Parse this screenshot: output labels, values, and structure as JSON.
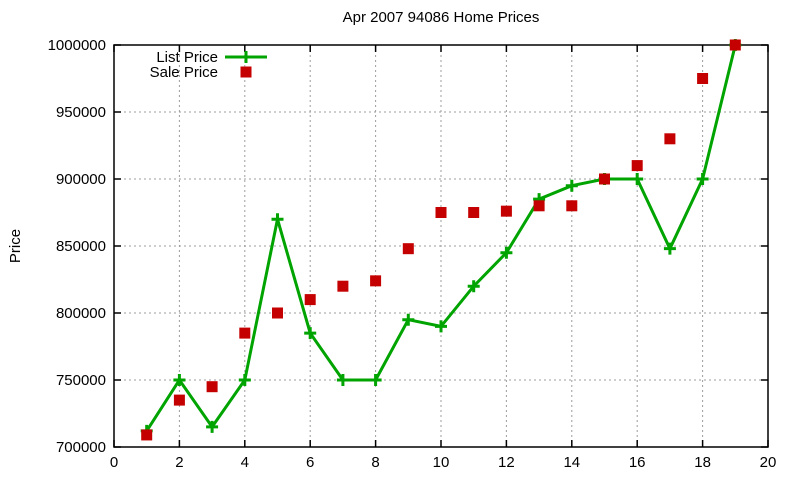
{
  "chart_data": {
    "type": "line",
    "title": "Apr 2007 94086 Home Prices",
    "xlabel": "",
    "ylabel": "Price",
    "xlim": [
      0,
      20
    ],
    "ylim": [
      700000,
      1000000
    ],
    "x_ticks": [
      0,
      2,
      4,
      6,
      8,
      10,
      12,
      14,
      16,
      18,
      20
    ],
    "y_ticks": [
      700000,
      750000,
      800000,
      850000,
      900000,
      950000,
      1000000
    ],
    "grid": true,
    "legend_position": "top-left",
    "x": [
      1,
      2,
      3,
      4,
      5,
      6,
      7,
      8,
      9,
      10,
      11,
      12,
      13,
      14,
      15,
      16,
      17,
      18,
      19
    ],
    "series": [
      {
        "name": "List Price",
        "color": "#00a400",
        "marker": "plus",
        "style": "line-with-markers",
        "values": [
          712000,
          750000,
          715000,
          750000,
          870000,
          785000,
          750000,
          750000,
          795000,
          790000,
          820000,
          845000,
          885000,
          895000,
          900000,
          900000,
          848000,
          900000,
          1000000
        ]
      },
      {
        "name": "Sale Price",
        "color": "#c40000",
        "marker": "square",
        "style": "markers-only",
        "values": [
          709000,
          735000,
          745000,
          785000,
          800000,
          810000,
          820000,
          824000,
          848000,
          875000,
          875000,
          876000,
          880000,
          880000,
          900000,
          910000,
          930000,
          975000,
          1000000
        ]
      }
    ],
    "colors": {
      "grid": "#9c9c9c",
      "axis": "#000000",
      "background": "#ffffff"
    }
  }
}
